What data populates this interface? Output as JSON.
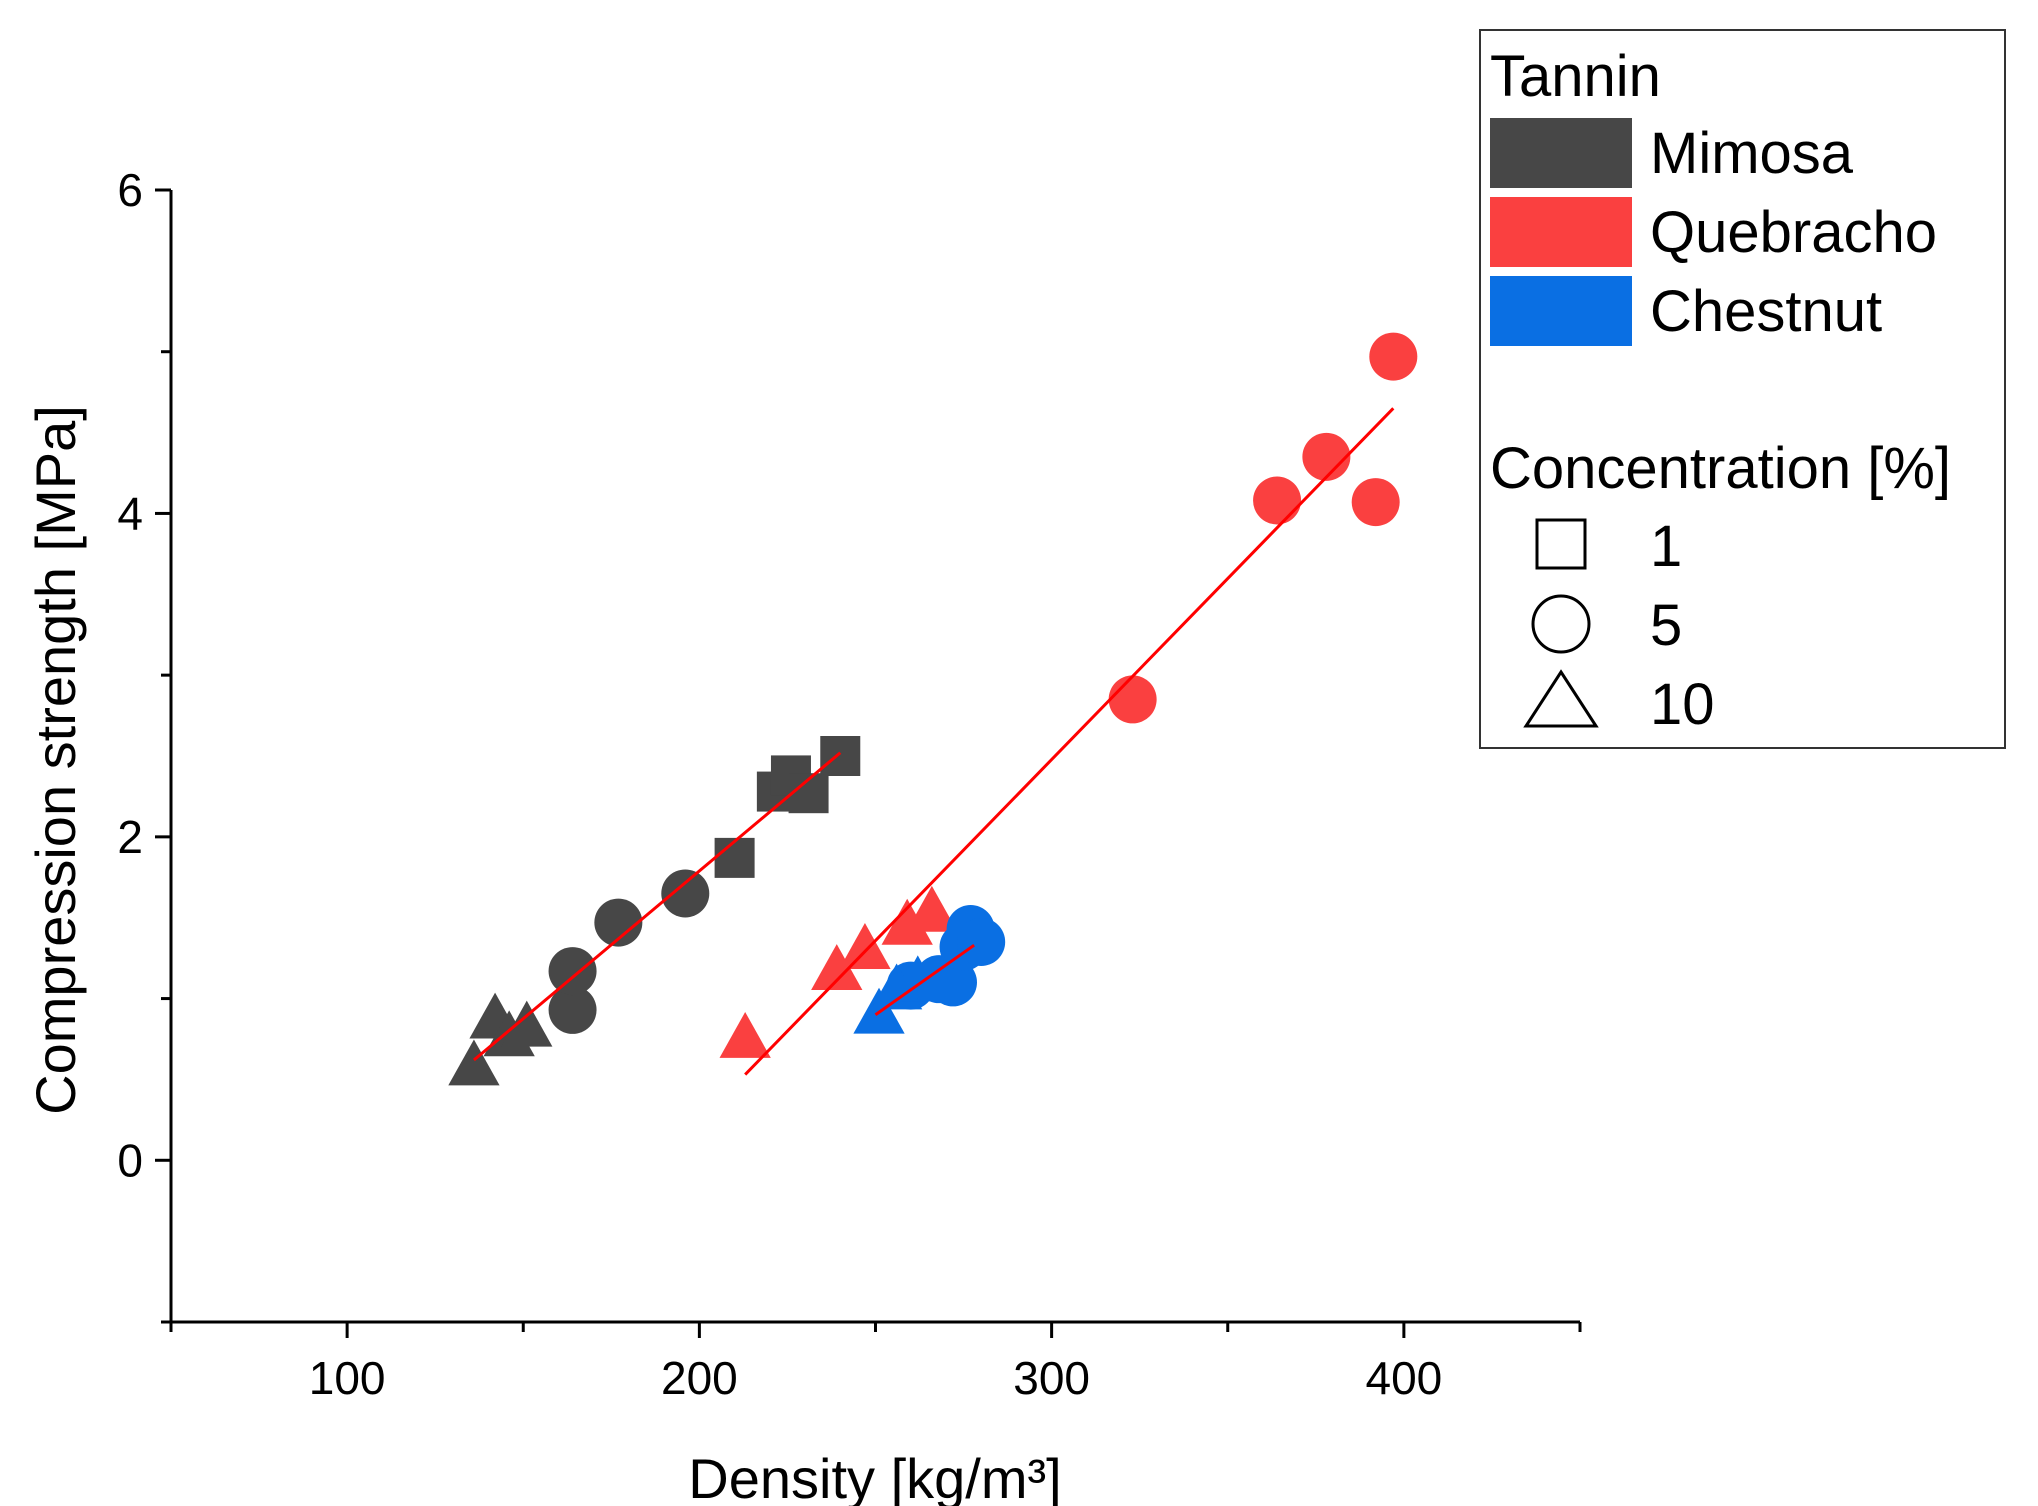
{
  "chart_data": {
    "type": "scatter",
    "xlabel": "Density [kg/m³]",
    "ylabel": "Compression strength [MPa]",
    "xlim": [
      50,
      450
    ],
    "ylim": [
      -1,
      6
    ],
    "x_ticks": [
      100,
      200,
      300,
      400
    ],
    "y_ticks": [
      0,
      2,
      4,
      6
    ],
    "x_tick_labels": [
      "100",
      "200",
      "300",
      "400"
    ],
    "y_tick_labels": [
      "0",
      "2",
      "4",
      "6"
    ],
    "legend": {
      "position": "top-right",
      "tannin_title": "Tannin",
      "tannin_entries": [
        {
          "label": "Mimosa",
          "color": "#474747"
        },
        {
          "label": "Quebracho",
          "color": "#fa4040"
        },
        {
          "label": "Chestnut",
          "color": "#0a6fe3"
        }
      ],
      "concentration_title": "Concentration [%]",
      "concentration_entries": [
        {
          "label": "1",
          "marker": "square"
        },
        {
          "label": "5",
          "marker": "circle"
        },
        {
          "label": "10",
          "marker": "triangle"
        }
      ]
    },
    "series": [
      {
        "tannin": "Mimosa",
        "concentration": "1",
        "marker": "square",
        "color": "#474747",
        "points": [
          [
            210,
            1.87
          ],
          [
            222,
            2.28
          ],
          [
            226,
            2.38
          ],
          [
            231,
            2.27
          ],
          [
            240,
            2.5
          ]
        ]
      },
      {
        "tannin": "Mimosa",
        "concentration": "5",
        "marker": "circle",
        "color": "#474747",
        "points": [
          [
            164,
            0.93
          ],
          [
            164,
            1.17
          ],
          [
            177,
            1.47
          ],
          [
            196,
            1.65
          ]
        ]
      },
      {
        "tannin": "Mimosa",
        "concentration": "10",
        "marker": "triangle",
        "color": "#474747",
        "points": [
          [
            136,
            0.58
          ],
          [
            142,
            0.87
          ],
          [
            146,
            0.76
          ],
          [
            151,
            0.82
          ]
        ]
      },
      {
        "tannin": "Quebracho",
        "concentration": "5",
        "marker": "circle",
        "color": "#fa4040",
        "points": [
          [
            323,
            2.85
          ],
          [
            364,
            4.08
          ],
          [
            378,
            4.35
          ],
          [
            392,
            4.07
          ],
          [
            397,
            4.97
          ]
        ]
      },
      {
        "tannin": "Quebracho",
        "concentration": "10",
        "marker": "triangle",
        "color": "#fa4040",
        "points": [
          [
            213,
            0.75
          ],
          [
            239,
            1.17
          ],
          [
            247,
            1.3
          ],
          [
            259,
            1.45
          ],
          [
            266,
            1.53
          ]
        ]
      },
      {
        "tannin": "Chestnut",
        "concentration": "5",
        "marker": "circle",
        "color": "#0a6fe3",
        "points": [
          [
            260,
            1.08
          ],
          [
            268,
            1.12
          ],
          [
            272,
            1.1
          ],
          [
            275,
            1.32
          ],
          [
            277,
            1.43
          ],
          [
            280,
            1.35
          ]
        ]
      },
      {
        "tannin": "Chestnut",
        "concentration": "10",
        "marker": "triangle",
        "color": "#0a6fe3",
        "points": [
          [
            251,
            0.9
          ],
          [
            256,
            1.05
          ],
          [
            262,
            1.1
          ]
        ]
      }
    ],
    "fit_lines": [
      {
        "name": "Mimosa fit",
        "color": "#ff0000",
        "from": [
          136,
          0.62
        ],
        "to": [
          240,
          2.52
        ]
      },
      {
        "name": "Quebracho fit",
        "color": "#ff0000",
        "from": [
          213,
          0.53
        ],
        "to": [
          397,
          4.65
        ]
      },
      {
        "name": "Chestnut fit",
        "color": "#ff0000",
        "from": [
          250,
          0.9
        ],
        "to": [
          278,
          1.33
        ]
      }
    ]
  }
}
